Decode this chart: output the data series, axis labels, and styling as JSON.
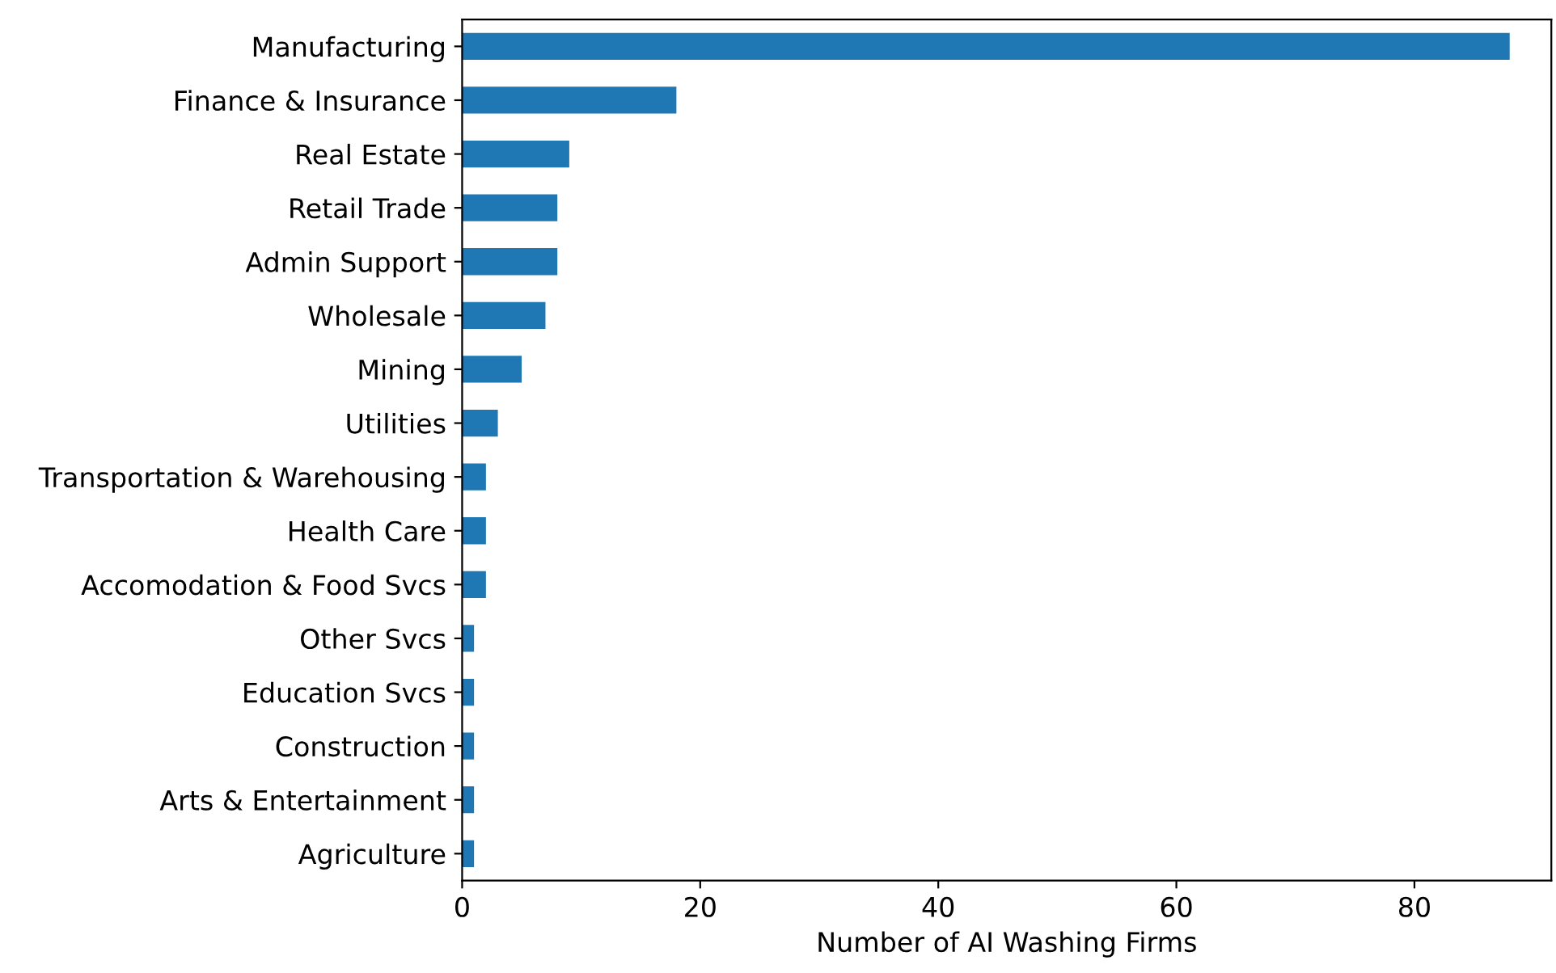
{
  "chart_data": {
    "type": "bar",
    "orientation": "horizontal",
    "xlabel": "Number of AI Washing Firms",
    "categories": [
      "Manufacturing",
      "Finance & Insurance",
      "Real Estate",
      "Retail Trade",
      "Admin Support",
      "Wholesale",
      "Mining",
      "Utilities",
      "Transportation & Warehousing",
      "Health Care",
      "Accomodation & Food Svcs",
      "Other Svcs",
      "Education Svcs",
      "Construction",
      "Arts & Entertainment",
      "Agriculture"
    ],
    "values": [
      88,
      18,
      9,
      8,
      8,
      7,
      5,
      3,
      2,
      2,
      2,
      1,
      1,
      1,
      1,
      1
    ],
    "color": "#1f77b4",
    "xlim": [
      0,
      91.5
    ],
    "xticks": [
      0,
      20,
      40,
      60,
      80
    ],
    "grid": false
  }
}
